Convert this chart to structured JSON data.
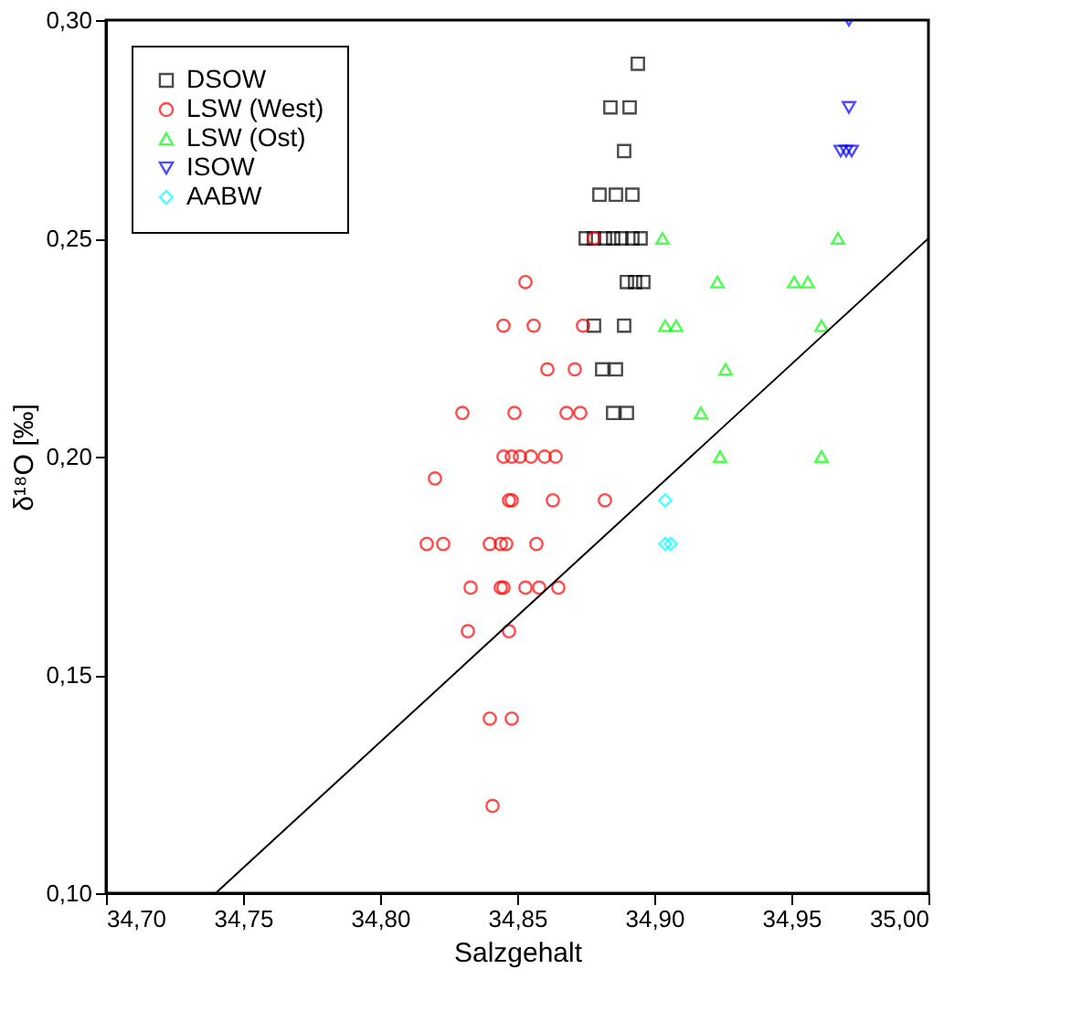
{
  "chart_data": {
    "type": "scatter",
    "xlabel": "Salzgehalt",
    "ylabel": "δ¹⁸O [‰]",
    "xlim": [
      34.7,
      35.0
    ],
    "ylim": [
      0.1,
      0.3
    ],
    "xticks": [
      {
        "value": 34.7,
        "label": "34,70"
      },
      {
        "value": 34.75,
        "label": "34,75"
      },
      {
        "value": 34.8,
        "label": "34,80"
      },
      {
        "value": 34.85,
        "label": "34,85"
      },
      {
        "value": 34.9,
        "label": "34,90"
      },
      {
        "value": 34.95,
        "label": "34,95"
      },
      {
        "value": 35.0,
        "label": "35,00"
      }
    ],
    "yticks": [
      {
        "value": 0.1,
        "label": "0,10"
      },
      {
        "value": 0.15,
        "label": "0,15"
      },
      {
        "value": 0.2,
        "label": "0,20"
      },
      {
        "value": 0.25,
        "label": "0,25"
      },
      {
        "value": 0.3,
        "label": "0,30"
      }
    ],
    "grid": false,
    "legend": "top left",
    "series": [
      {
        "name": "DSOW",
        "color": "#000000",
        "marker": "square",
        "x": [
          34.894,
          34.884,
          34.891,
          34.889,
          34.88,
          34.886,
          34.892,
          34.875,
          34.878,
          34.882,
          34.885,
          34.888,
          34.892,
          34.895,
          34.89,
          34.893,
          34.896,
          34.878,
          34.889,
          34.881,
          34.886,
          34.885,
          34.89
        ],
        "values": [
          0.29,
          0.28,
          0.28,
          0.27,
          0.26,
          0.26,
          0.26,
          0.25,
          0.25,
          0.25,
          0.25,
          0.25,
          0.25,
          0.25,
          0.24,
          0.24,
          0.24,
          0.23,
          0.23,
          0.22,
          0.22,
          0.21,
          0.21
        ]
      },
      {
        "name": "LSW (West)",
        "color": "#ff0000",
        "marker": "circle",
        "x": [
          34.878,
          34.853,
          34.845,
          34.856,
          34.874,
          34.861,
          34.871,
          34.83,
          34.849,
          34.868,
          34.873,
          34.845,
          34.848,
          34.851,
          34.855,
          34.86,
          34.864,
          34.82,
          34.847,
          34.848,
          34.863,
          34.882,
          34.817,
          34.823,
          34.84,
          34.844,
          34.846,
          34.857,
          34.833,
          34.844,
          34.845,
          34.853,
          34.858,
          34.865,
          34.832,
          34.847,
          34.84,
          34.848,
          34.841
        ],
        "values": [
          0.25,
          0.24,
          0.23,
          0.23,
          0.23,
          0.22,
          0.22,
          0.21,
          0.21,
          0.21,
          0.21,
          0.2,
          0.2,
          0.2,
          0.2,
          0.2,
          0.2,
          0.195,
          0.19,
          0.19,
          0.19,
          0.19,
          0.18,
          0.18,
          0.18,
          0.18,
          0.18,
          0.18,
          0.17,
          0.17,
          0.17,
          0.17,
          0.17,
          0.17,
          0.16,
          0.16,
          0.14,
          0.14,
          0.12
        ]
      },
      {
        "name": "LSW (Ost)",
        "color": "#00ff00",
        "marker": "triangle",
        "x": [
          34.903,
          34.967,
          34.923,
          34.951,
          34.956,
          34.904,
          34.908,
          34.961,
          34.926,
          34.917,
          34.924,
          34.961
        ],
        "values": [
          0.25,
          0.25,
          0.24,
          0.24,
          0.24,
          0.23,
          0.23,
          0.23,
          0.22,
          0.21,
          0.2,
          0.2
        ]
      },
      {
        "name": "ISOW",
        "color": "#0000ff",
        "marker": "triangle-down",
        "x": [
          34.971,
          34.971,
          34.968,
          34.97,
          34.972
        ],
        "values": [
          0.3,
          0.28,
          0.27,
          0.27,
          0.27
        ]
      },
      {
        "name": "AABW",
        "color": "#00ffff",
        "marker": "diamond",
        "x": [
          34.904,
          34.904,
          34.906
        ],
        "values": [
          0.19,
          0.18,
          0.18
        ]
      },
      {
        "type": "line",
        "color": "#000000",
        "x": [
          34.74,
          35.0
        ],
        "values": [
          0.1,
          0.25
        ]
      }
    ]
  }
}
